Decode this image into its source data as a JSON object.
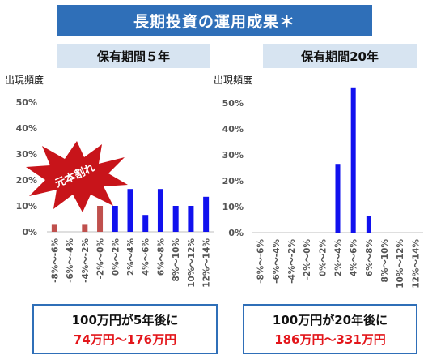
{
  "title": "長期投資の運用成果＊",
  "callout": "元本割れ",
  "chart_data": [
    {
      "type": "bar",
      "title": "保有期間５年",
      "ylabel": "出現頻度",
      "ylim": [
        0,
        55
      ],
      "yticks": [
        "0%",
        "10%",
        "20%",
        "30%",
        "40%",
        "50%"
      ],
      "categories": [
        "-8%～-6%",
        "-6%～-4%",
        "-4%～-2%",
        "-2%～0%",
        "0%～2%",
        "2%～4%",
        "4%～6%",
        "6%～8%",
        "8%～10%",
        "10%～12%",
        "12%～14%"
      ],
      "values": [
        3,
        0,
        3,
        10,
        10,
        16.5,
        6.5,
        16.5,
        10,
        10,
        13.5
      ],
      "colors": [
        "#c0504d",
        "#c0504d",
        "#c0504d",
        "#c0504d",
        "#1111ee",
        "#1111ee",
        "#1111ee",
        "#1111ee",
        "#1111ee",
        "#1111ee",
        "#1111ee"
      ],
      "result_line1": "100万円が5年後に",
      "result_line2": "74万円～176万円"
    },
    {
      "type": "bar",
      "title": "保有期間20年",
      "ylabel": "出現頻度",
      "ylim": [
        0,
        55
      ],
      "yticks": [
        "0%",
        "10%",
        "20%",
        "30%",
        "40%",
        "50%"
      ],
      "categories": [
        "-8%～-6%",
        "-6%～-4%",
        "-4%～-2%",
        "-2%～0%",
        "0%～2%",
        "2%～4%",
        "4%～6%",
        "6%～8%",
        "8%～10%",
        "10%～12%",
        "12%～14%"
      ],
      "values": [
        0,
        0,
        0,
        0,
        0,
        26.5,
        56,
        6.5,
        0,
        0,
        0
      ],
      "colors": [
        "#1111ee",
        "#1111ee",
        "#1111ee",
        "#1111ee",
        "#1111ee",
        "#1111ee",
        "#1111ee",
        "#1111ee",
        "#1111ee",
        "#1111ee",
        "#1111ee"
      ],
      "result_line1": "100万円が20年後に",
      "result_line2": "186万円～331万円"
    }
  ]
}
